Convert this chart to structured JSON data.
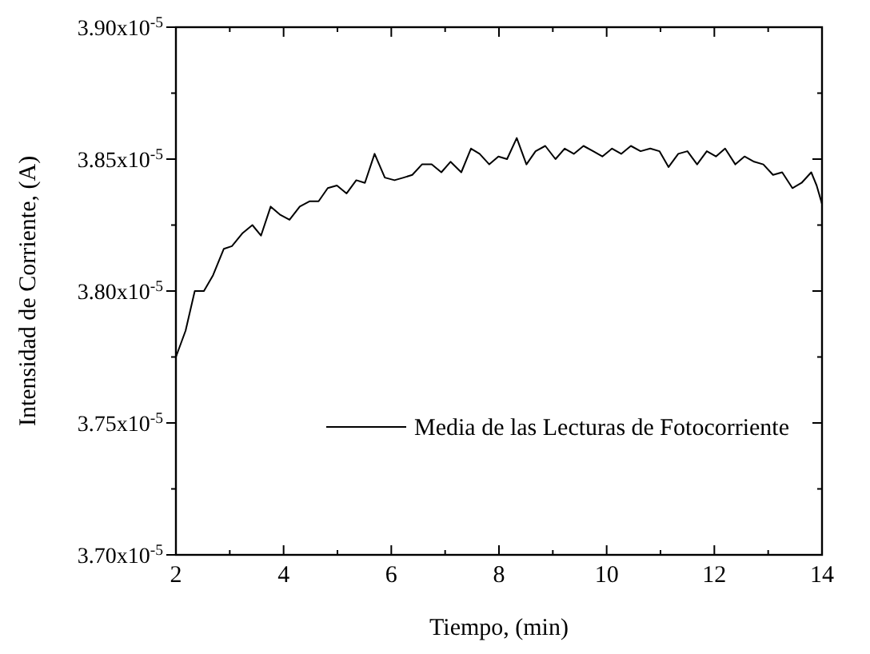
{
  "chart_data": {
    "type": "line",
    "xlabel": "Tiempo, (min)",
    "ylabel": "Intensidad de Corriente, (A)",
    "xlim": [
      2,
      14
    ],
    "xticks": [
      2,
      {
        "value": 3,
        "label": null
      },
      4,
      {
        "value": 5,
        "label": null
      },
      6,
      {
        "value": 7,
        "label": null
      },
      8,
      {
        "value": 9,
        "label": null
      },
      10,
      {
        "value": 11,
        "label": null
      },
      12,
      {
        "value": 13,
        "label": null
      },
      14
    ],
    "ylim": [
      3.7e-05,
      3.9e-05
    ],
    "yticks": [
      {
        "value": 3.7e-05,
        "label": "3.70x10$^{-5}$"
      },
      {
        "value": 3.725e-05,
        "label": null
      },
      {
        "value": 3.75e-05,
        "label": "3.75x10$^{-5}$"
      },
      {
        "value": 3.775e-05,
        "label": null
      },
      {
        "value": 3.8e-05,
        "label": "3.80x10$^{-5}$"
      },
      {
        "value": 3.825e-05,
        "label": null
      },
      {
        "value": 3.85e-05,
        "label": "3.85x10$^{-5}$"
      },
      {
        "value": 3.875e-05,
        "label": null
      },
      {
        "value": 3.9e-05,
        "label": "3.90x10$^{-5}$"
      }
    ],
    "legend": "bottom right",
    "grid": false,
    "marker": "none",
    "line_style": "solid",
    "series": [
      {
        "name": "Media de las Lecturas de Fotocorriente",
        "color": "#000000",
        "x": [
          2,
          2.18,
          2.35,
          2.52,
          2.69,
          2.89,
          3.04,
          3.24,
          3.42,
          3.58,
          3.76,
          3.93,
          4.11,
          4.3,
          4.48,
          4.65,
          4.82,
          4.99,
          5.17,
          5.35,
          5.51,
          5.69,
          5.88,
          6.06,
          6.23,
          6.39,
          6.57,
          6.75,
          6.93,
          7.1,
          7.3,
          7.48,
          7.64,
          7.82,
          7.99,
          8.15,
          8.33,
          8.51,
          8.68,
          8.86,
          9.05,
          9.22,
          9.39,
          9.57,
          9.75,
          9.92,
          10.1,
          10.27,
          10.45,
          10.63,
          10.81,
          10.98,
          11.15,
          11.33,
          11.5,
          11.68,
          11.86,
          12.03,
          12.2,
          12.39,
          12.56,
          12.74,
          12.91,
          13.09,
          13.26,
          13.45,
          13.62,
          13.8,
          13.9,
          14
        ],
        "values": [
          3.775e-05,
          3.785e-05,
          3.8e-05,
          3.8e-05,
          3.806e-05,
          3.816e-05,
          3.817e-05,
          3.822e-05,
          3.825e-05,
          3.821e-05,
          3.832e-05,
          3.829e-05,
          3.827e-05,
          3.832e-05,
          3.834e-05,
          3.834e-05,
          3.839e-05,
          3.84e-05,
          3.837e-05,
          3.842e-05,
          3.841e-05,
          3.852e-05,
          3.843e-05,
          3.842e-05,
          3.843e-05,
          3.844e-05,
          3.848e-05,
          3.848e-05,
          3.845e-05,
          3.849e-05,
          3.845e-05,
          3.854e-05,
          3.852e-05,
          3.848e-05,
          3.851e-05,
          3.85e-05,
          3.858e-05,
          3.848e-05,
          3.853e-05,
          3.855e-05,
          3.85e-05,
          3.854e-05,
          3.852e-05,
          3.855e-05,
          3.853e-05,
          3.851e-05,
          3.854e-05,
          3.852e-05,
          3.855e-05,
          3.853e-05,
          3.854e-05,
          3.853e-05,
          3.847e-05,
          3.852e-05,
          3.853e-05,
          3.848e-05,
          3.853e-05,
          3.851e-05,
          3.854e-05,
          3.848e-05,
          3.851e-05,
          3.849e-05,
          3.848e-05,
          3.844e-05,
          3.845e-05,
          3.839e-05,
          3.841e-05,
          3.845e-05,
          3.84e-05,
          3.833e-05
        ]
      }
    ]
  }
}
